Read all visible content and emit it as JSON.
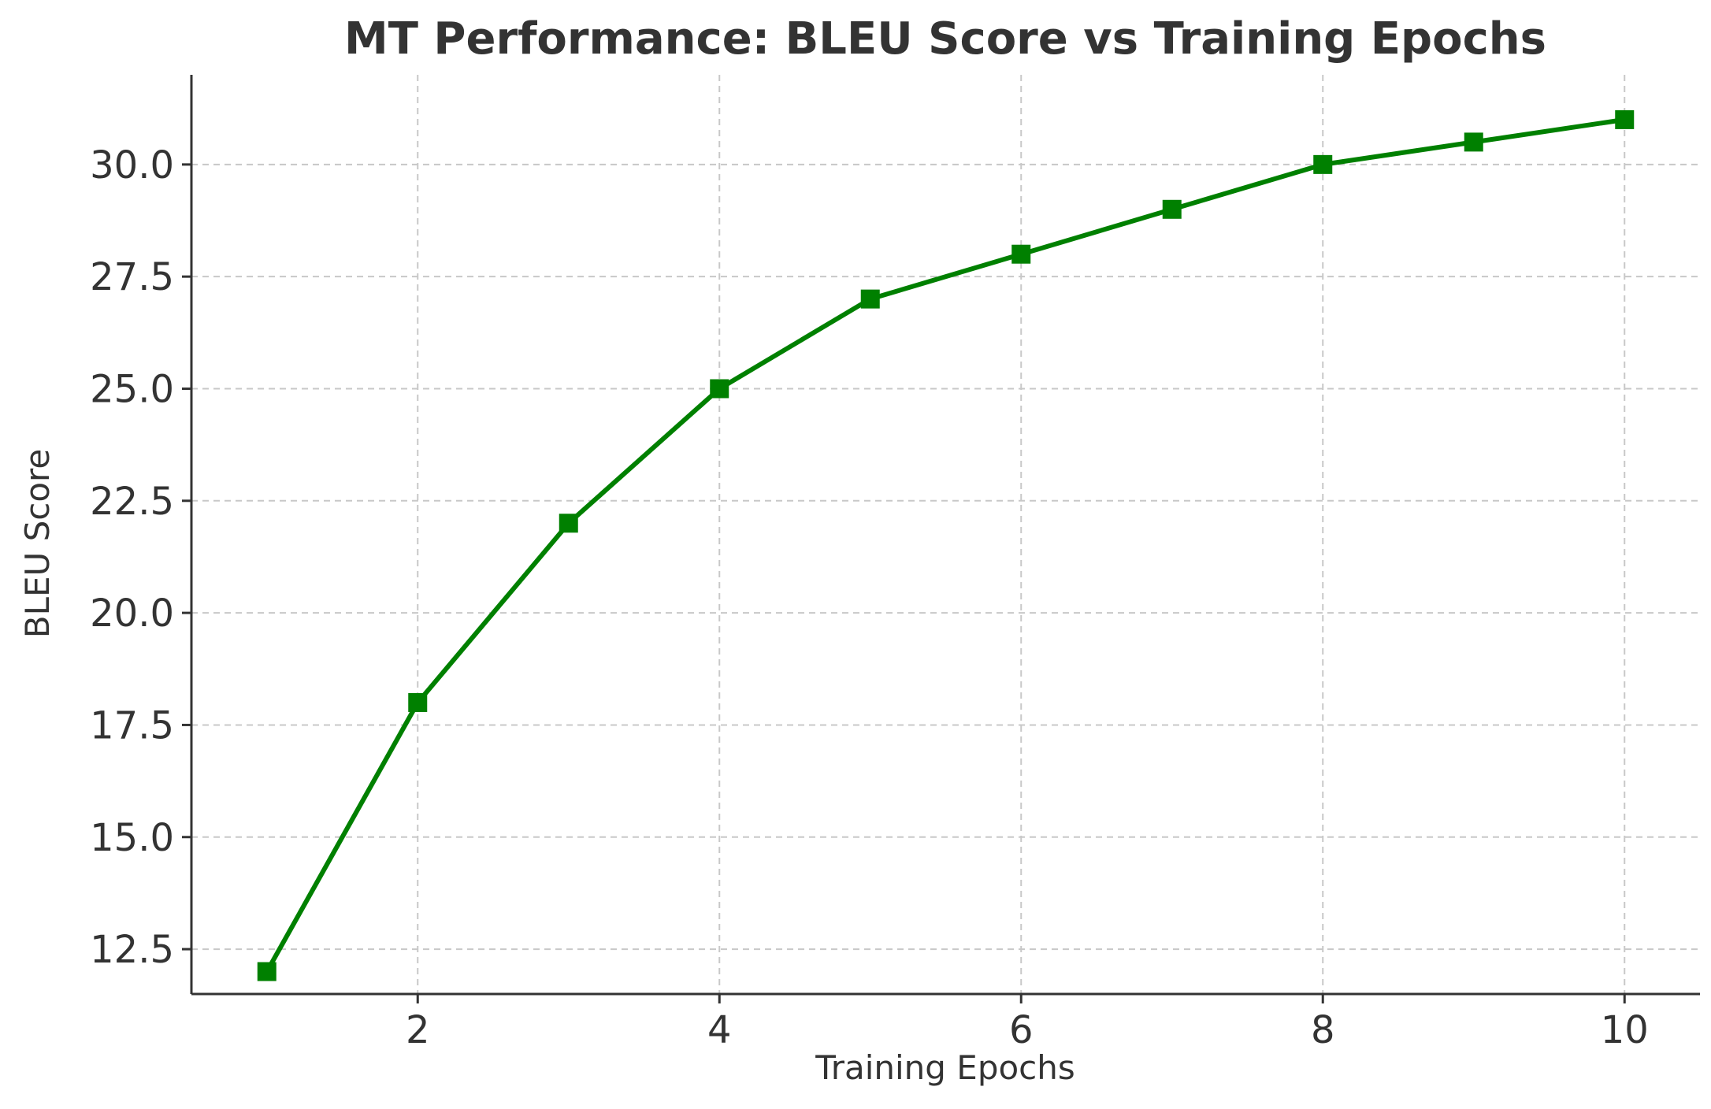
{
  "chart_data": {
    "type": "line",
    "title": "MT Performance: BLEU Score vs Training Epochs",
    "xlabel": "Training Epochs",
    "ylabel": "BLEU Score",
    "x": [
      1,
      2,
      3,
      4,
      5,
      6,
      7,
      8,
      9,
      10
    ],
    "series": [
      {
        "values": [
          12,
          18,
          22,
          25,
          27,
          28,
          29,
          30,
          30.5,
          31
        ],
        "color": "#008000",
        "marker": "square",
        "line_style": "solid"
      }
    ],
    "xlim": [
      0.5,
      10.5
    ],
    "ylim": [
      11.5,
      32
    ],
    "xticks": [
      2,
      4,
      6,
      8,
      10
    ],
    "xtick_labels": [
      "2",
      "4",
      "6",
      "8",
      "10"
    ],
    "yticks": [
      12.5,
      15.0,
      17.5,
      20.0,
      22.5,
      25.0,
      27.5,
      30.0
    ],
    "ytick_labels": [
      "12.5",
      "15.0",
      "17.5",
      "20.0",
      "22.5",
      "25.0",
      "27.5",
      "30.0"
    ],
    "grid": true,
    "grid_style": "dashed"
  }
}
